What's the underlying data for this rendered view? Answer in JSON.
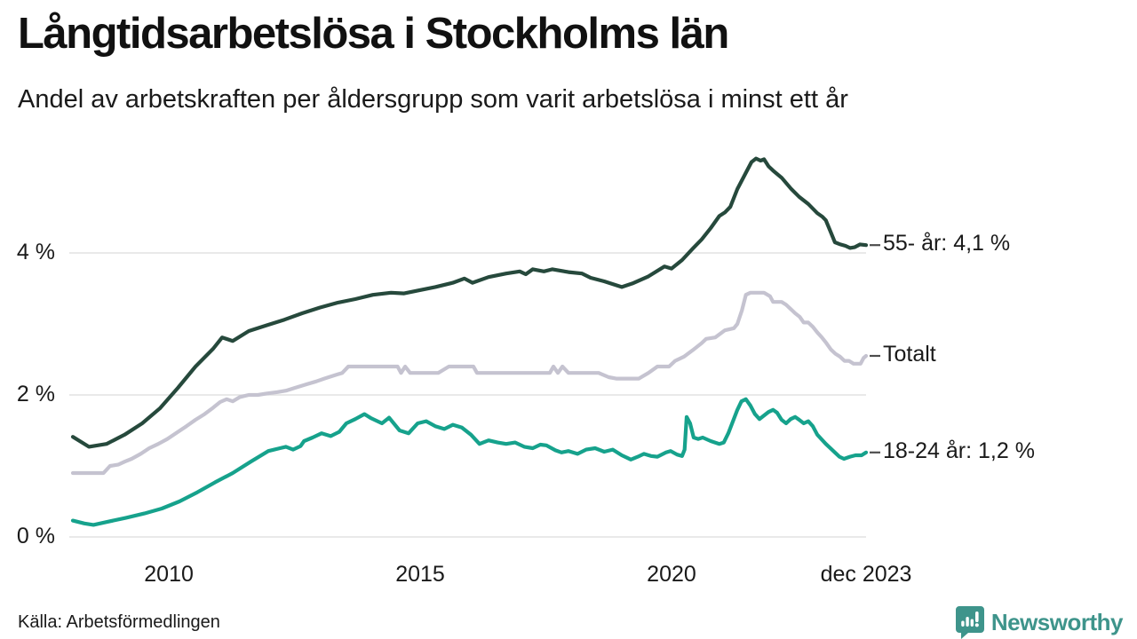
{
  "footer": {
    "source": "Källa: Arbetsförmedlingen",
    "brand": "Newsworthy"
  },
  "colors": {
    "age55": "#26493c",
    "total": "#c5c3d0",
    "age1824": "#16a28c",
    "grid": "#e2e2e2",
    "text": "#1a1a1a",
    "tick_dash": "#4d4d4d",
    "brand": "#3e948b"
  },
  "chart_data": {
    "type": "line",
    "title": "Långtidsarbetslösa i Stockholms län",
    "subtitle": "Andel av arbetskraften per åldersgrupp som varit arbetslösa i minst ett år",
    "unit": "% av arbetskraften",
    "xlim": [
      2008.09,
      2023.87
    ],
    "ylim": [
      0,
      5.6
    ],
    "grid": true,
    "legend_position": "right-end-labels",
    "yticks": [
      {
        "label": "0 %",
        "value": 0
      },
      {
        "label": "2 %",
        "value": 2
      },
      {
        "label": "4 %",
        "value": 4
      }
    ],
    "xticks": [
      {
        "label": "2010",
        "year": 2010
      },
      {
        "label": "2015",
        "year": 2015
      },
      {
        "label": "2020",
        "year": 2020
      },
      {
        "label": "dec 2023",
        "year": 2023.87
      }
    ],
    "series": [
      {
        "id": "total",
        "name": "Totalt",
        "label_text": "Totalt",
        "color_key": "total",
        "last_value": 2.55,
        "points": [
          [
            2008.09,
            0.9
          ],
          [
            2008.7,
            0.9
          ],
          [
            2008.83,
            1.0
          ],
          [
            2009.0,
            1.02
          ],
          [
            2009.12,
            1.06
          ],
          [
            2009.26,
            1.1
          ],
          [
            2009.44,
            1.17
          ],
          [
            2009.61,
            1.25
          ],
          [
            2009.79,
            1.31
          ],
          [
            2009.97,
            1.38
          ],
          [
            2010.18,
            1.48
          ],
          [
            2010.35,
            1.56
          ],
          [
            2010.53,
            1.65
          ],
          [
            2010.71,
            1.73
          ],
          [
            2010.88,
            1.82
          ],
          [
            2011.02,
            1.9
          ],
          [
            2011.15,
            1.94
          ],
          [
            2011.27,
            1.91
          ],
          [
            2011.41,
            1.97
          ],
          [
            2011.59,
            2.0
          ],
          [
            2011.77,
            2.0
          ],
          [
            2011.94,
            2.02
          ],
          [
            2012.16,
            2.04
          ],
          [
            2012.33,
            2.06
          ],
          [
            2012.51,
            2.1
          ],
          [
            2012.74,
            2.15
          ],
          [
            2012.93,
            2.19
          ],
          [
            2013.09,
            2.23
          ],
          [
            2013.27,
            2.27
          ],
          [
            2013.45,
            2.31
          ],
          [
            2013.57,
            2.4
          ],
          [
            2014.55,
            2.4
          ],
          [
            2014.62,
            2.31
          ],
          [
            2014.7,
            2.4
          ],
          [
            2014.8,
            2.31
          ],
          [
            2015.36,
            2.31
          ],
          [
            2015.57,
            2.4
          ],
          [
            2016.06,
            2.4
          ],
          [
            2016.13,
            2.31
          ],
          [
            2017.58,
            2.31
          ],
          [
            2017.65,
            2.4
          ],
          [
            2017.74,
            2.31
          ],
          [
            2017.83,
            2.4
          ],
          [
            2017.95,
            2.31
          ],
          [
            2018.55,
            2.31
          ],
          [
            2018.75,
            2.25
          ],
          [
            2018.9,
            2.23
          ],
          [
            2019.35,
            2.23
          ],
          [
            2019.54,
            2.31
          ],
          [
            2019.72,
            2.4
          ],
          [
            2019.95,
            2.4
          ],
          [
            2020.07,
            2.48
          ],
          [
            2020.25,
            2.54
          ],
          [
            2020.42,
            2.63
          ],
          [
            2020.6,
            2.73
          ],
          [
            2020.69,
            2.79
          ],
          [
            2020.87,
            2.81
          ],
          [
            2021.06,
            2.91
          ],
          [
            2021.24,
            2.94
          ],
          [
            2021.31,
            3.0
          ],
          [
            2021.4,
            3.19
          ],
          [
            2021.48,
            3.41
          ],
          [
            2021.57,
            3.44
          ],
          [
            2021.84,
            3.44
          ],
          [
            2021.96,
            3.39
          ],
          [
            2022.02,
            3.31
          ],
          [
            2022.19,
            3.31
          ],
          [
            2022.28,
            3.27
          ],
          [
            2022.37,
            3.21
          ],
          [
            2022.46,
            3.15
          ],
          [
            2022.55,
            3.1
          ],
          [
            2022.63,
            3.02
          ],
          [
            2022.72,
            3.02
          ],
          [
            2022.81,
            2.96
          ],
          [
            2022.9,
            2.88
          ],
          [
            2022.99,
            2.81
          ],
          [
            2023.08,
            2.73
          ],
          [
            2023.17,
            2.64
          ],
          [
            2023.26,
            2.58
          ],
          [
            2023.35,
            2.54
          ],
          [
            2023.44,
            2.48
          ],
          [
            2023.53,
            2.48
          ],
          [
            2023.62,
            2.44
          ],
          [
            2023.76,
            2.44
          ],
          [
            2023.82,
            2.52
          ],
          [
            2023.87,
            2.55
          ]
        ]
      },
      {
        "id": "age1824",
        "name": "18-24 år",
        "label_text": "18-24 år: 1,2 %",
        "color_key": "age1824",
        "last_value": 1.2,
        "points": [
          [
            2008.09,
            0.23
          ],
          [
            2008.32,
            0.19
          ],
          [
            2008.5,
            0.17
          ],
          [
            2008.76,
            0.21
          ],
          [
            2009.15,
            0.27
          ],
          [
            2009.51,
            0.33
          ],
          [
            2009.86,
            0.4
          ],
          [
            2010.21,
            0.5
          ],
          [
            2010.57,
            0.63
          ],
          [
            2010.92,
            0.77
          ],
          [
            2011.27,
            0.9
          ],
          [
            2011.63,
            1.06
          ],
          [
            2011.98,
            1.21
          ],
          [
            2012.21,
            1.25
          ],
          [
            2012.33,
            1.27
          ],
          [
            2012.47,
            1.23
          ],
          [
            2012.62,
            1.28
          ],
          [
            2012.69,
            1.35
          ],
          [
            2012.86,
            1.4
          ],
          [
            2013.04,
            1.46
          ],
          [
            2013.22,
            1.42
          ],
          [
            2013.39,
            1.48
          ],
          [
            2013.53,
            1.6
          ],
          [
            2013.71,
            1.66
          ],
          [
            2013.89,
            1.73
          ],
          [
            2014.03,
            1.67
          ],
          [
            2014.24,
            1.6
          ],
          [
            2014.38,
            1.68
          ],
          [
            2014.59,
            1.5
          ],
          [
            2014.77,
            1.46
          ],
          [
            2014.95,
            1.6
          ],
          [
            2015.12,
            1.63
          ],
          [
            2015.3,
            1.56
          ],
          [
            2015.48,
            1.52
          ],
          [
            2015.65,
            1.58
          ],
          [
            2015.83,
            1.54
          ],
          [
            2016.01,
            1.44
          ],
          [
            2016.18,
            1.31
          ],
          [
            2016.36,
            1.36
          ],
          [
            2016.54,
            1.33
          ],
          [
            2016.71,
            1.31
          ],
          [
            2016.89,
            1.33
          ],
          [
            2017.07,
            1.27
          ],
          [
            2017.24,
            1.25
          ],
          [
            2017.39,
            1.3
          ],
          [
            2017.51,
            1.29
          ],
          [
            2017.69,
            1.22
          ],
          [
            2017.81,
            1.19
          ],
          [
            2017.95,
            1.21
          ],
          [
            2018.13,
            1.17
          ],
          [
            2018.3,
            1.23
          ],
          [
            2018.48,
            1.25
          ],
          [
            2018.66,
            1.2
          ],
          [
            2018.83,
            1.23
          ],
          [
            2019.01,
            1.15
          ],
          [
            2019.19,
            1.09
          ],
          [
            2019.33,
            1.13
          ],
          [
            2019.45,
            1.17
          ],
          [
            2019.59,
            1.14
          ],
          [
            2019.72,
            1.13
          ],
          [
            2019.89,
            1.19
          ],
          [
            2019.98,
            1.21
          ],
          [
            2020.11,
            1.16
          ],
          [
            2020.21,
            1.14
          ],
          [
            2020.26,
            1.23
          ],
          [
            2020.3,
            1.69
          ],
          [
            2020.37,
            1.6
          ],
          [
            2020.44,
            1.4
          ],
          [
            2020.53,
            1.38
          ],
          [
            2020.62,
            1.4
          ],
          [
            2020.78,
            1.35
          ],
          [
            2020.95,
            1.31
          ],
          [
            2021.04,
            1.33
          ],
          [
            2021.13,
            1.46
          ],
          [
            2021.31,
            1.79
          ],
          [
            2021.39,
            1.91
          ],
          [
            2021.48,
            1.94
          ],
          [
            2021.57,
            1.85
          ],
          [
            2021.66,
            1.73
          ],
          [
            2021.75,
            1.66
          ],
          [
            2021.84,
            1.71
          ],
          [
            2021.93,
            1.76
          ],
          [
            2022.02,
            1.79
          ],
          [
            2022.1,
            1.75
          ],
          [
            2022.19,
            1.65
          ],
          [
            2022.28,
            1.6
          ],
          [
            2022.37,
            1.66
          ],
          [
            2022.46,
            1.69
          ],
          [
            2022.54,
            1.65
          ],
          [
            2022.63,
            1.6
          ],
          [
            2022.72,
            1.63
          ],
          [
            2022.81,
            1.56
          ],
          [
            2022.9,
            1.44
          ],
          [
            2023.07,
            1.31
          ],
          [
            2023.25,
            1.19
          ],
          [
            2023.34,
            1.13
          ],
          [
            2023.43,
            1.1
          ],
          [
            2023.55,
            1.13
          ],
          [
            2023.66,
            1.15
          ],
          [
            2023.78,
            1.15
          ],
          [
            2023.87,
            1.19
          ]
        ]
      },
      {
        "id": "age55",
        "name": "55- år",
        "label_text": "55- år: 4,1 %",
        "color_key": "age55",
        "last_value": 4.1,
        "points": [
          [
            2008.09,
            1.41
          ],
          [
            2008.41,
            1.27
          ],
          [
            2008.76,
            1.31
          ],
          [
            2009.12,
            1.44
          ],
          [
            2009.47,
            1.6
          ],
          [
            2009.82,
            1.81
          ],
          [
            2010.18,
            2.1
          ],
          [
            2010.53,
            2.4
          ],
          [
            2010.88,
            2.65
          ],
          [
            2011.06,
            2.81
          ],
          [
            2011.27,
            2.76
          ],
          [
            2011.59,
            2.9
          ],
          [
            2011.94,
            2.98
          ],
          [
            2012.3,
            3.06
          ],
          [
            2012.65,
            3.15
          ],
          [
            2013.0,
            3.23
          ],
          [
            2013.36,
            3.3
          ],
          [
            2013.71,
            3.35
          ],
          [
            2014.06,
            3.41
          ],
          [
            2014.42,
            3.44
          ],
          [
            2014.68,
            3.43
          ],
          [
            2014.95,
            3.47
          ],
          [
            2015.3,
            3.52
          ],
          [
            2015.65,
            3.58
          ],
          [
            2015.88,
            3.64
          ],
          [
            2016.04,
            3.58
          ],
          [
            2016.36,
            3.66
          ],
          [
            2016.71,
            3.71
          ],
          [
            2016.98,
            3.74
          ],
          [
            2017.1,
            3.7
          ],
          [
            2017.24,
            3.77
          ],
          [
            2017.46,
            3.74
          ],
          [
            2017.63,
            3.77
          ],
          [
            2017.95,
            3.73
          ],
          [
            2018.22,
            3.71
          ],
          [
            2018.39,
            3.65
          ],
          [
            2018.66,
            3.6
          ],
          [
            2018.92,
            3.54
          ],
          [
            2019.01,
            3.52
          ],
          [
            2019.22,
            3.57
          ],
          [
            2019.54,
            3.67
          ],
          [
            2019.86,
            3.81
          ],
          [
            2020.0,
            3.78
          ],
          [
            2020.21,
            3.9
          ],
          [
            2020.42,
            4.06
          ],
          [
            2020.6,
            4.19
          ],
          [
            2020.78,
            4.35
          ],
          [
            2020.95,
            4.52
          ],
          [
            2021.06,
            4.57
          ],
          [
            2021.17,
            4.65
          ],
          [
            2021.31,
            4.9
          ],
          [
            2021.48,
            5.13
          ],
          [
            2021.59,
            5.28
          ],
          [
            2021.68,
            5.33
          ],
          [
            2021.77,
            5.3
          ],
          [
            2021.84,
            5.32
          ],
          [
            2021.93,
            5.22
          ],
          [
            2022.02,
            5.16
          ],
          [
            2022.19,
            5.06
          ],
          [
            2022.37,
            4.91
          ],
          [
            2022.54,
            4.79
          ],
          [
            2022.72,
            4.69
          ],
          [
            2022.9,
            4.56
          ],
          [
            2023.0,
            4.51
          ],
          [
            2023.07,
            4.46
          ],
          [
            2023.18,
            4.27
          ],
          [
            2023.25,
            4.15
          ],
          [
            2023.36,
            4.12
          ],
          [
            2023.46,
            4.1
          ],
          [
            2023.55,
            4.07
          ],
          [
            2023.64,
            4.08
          ],
          [
            2023.75,
            4.12
          ],
          [
            2023.87,
            4.11
          ]
        ]
      }
    ]
  }
}
